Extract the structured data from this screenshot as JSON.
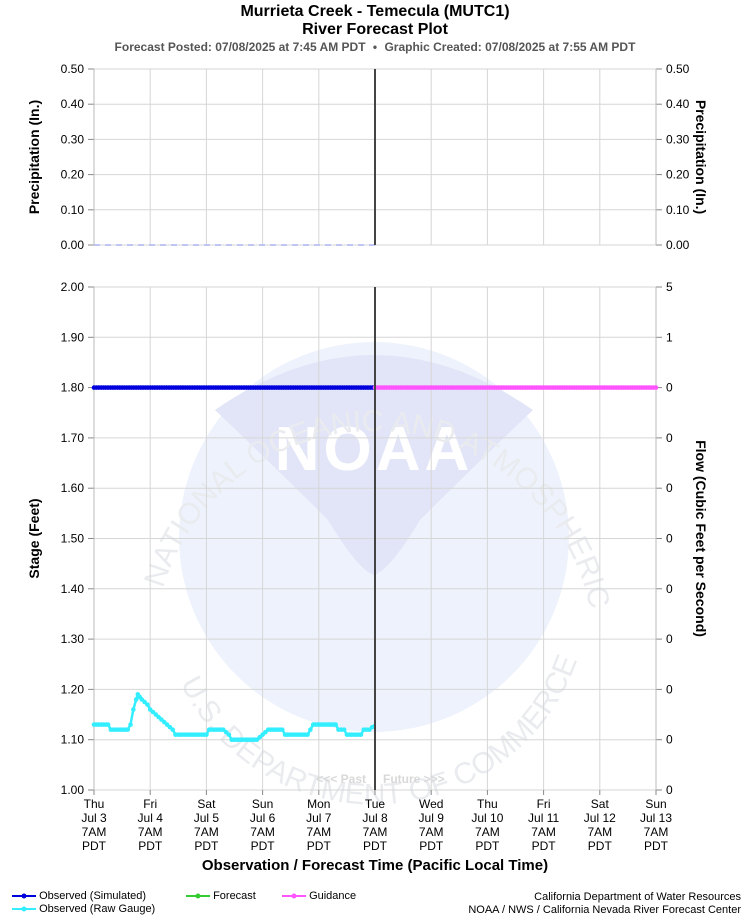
{
  "header": {
    "title": "Murrieta Creek - Temecula (MUTC1)",
    "subtitle": "River Forecast Plot",
    "posted_label": "Forecast Posted: 07/08/2025 at 7:45 AM PDT",
    "bullet": "•",
    "created_label": "Graphic Created: 07/08/2025 at 7:55 AM PDT"
  },
  "chart_data": [
    {
      "type": "line",
      "panel": "precipitation",
      "ylabel_left": "Precipitation (In.)",
      "ylabel_right": "Precipitation (In.)",
      "ylim": [
        0,
        0.5
      ],
      "yticks": [
        "0.00",
        "0.10",
        "0.20",
        "0.30",
        "0.40",
        "0.50"
      ],
      "yticks_right": [
        "0.00",
        "0.10",
        "0.20",
        "0.30",
        "0.40",
        "0.50"
      ],
      "grid": true,
      "series": [
        {
          "name": "Observed precipitation",
          "color": "#aab4f0",
          "dashed": true,
          "x_start_day": 0,
          "x_end_day": 5,
          "value": 0.0
        }
      ]
    },
    {
      "type": "line",
      "panel": "stage",
      "ylabel_left": "Stage (Feet)",
      "ylabel_right": "Flow (Cubic Feet per Second)",
      "ylim": [
        1.0,
        2.0
      ],
      "yticks": [
        "1.00",
        "1.10",
        "1.20",
        "1.30",
        "1.40",
        "1.50",
        "1.60",
        "1.70",
        "1.80",
        "1.90",
        "2.00"
      ],
      "yticks_right": [
        "0",
        "0",
        "0",
        "0",
        "0",
        "0",
        "0",
        "0",
        "0",
        "1",
        "5"
      ],
      "grid": true,
      "now_line_day": 5,
      "past_label": "<<< Past",
      "future_label": "Future >>>",
      "x_ticks": [
        {
          "dow": "Thu",
          "date": "Jul 3"
        },
        {
          "dow": "Fri",
          "date": "Jul 4"
        },
        {
          "dow": "Sat",
          "date": "Jul 5"
        },
        {
          "dow": "Sun",
          "date": "Jul 6"
        },
        {
          "dow": "Mon",
          "date": "Jul 7"
        },
        {
          "dow": "Tue",
          "date": "Jul 8"
        },
        {
          "dow": "Wed",
          "date": "Jul 9"
        },
        {
          "dow": "Thu",
          "date": "Jul 10"
        },
        {
          "dow": "Fri",
          "date": "Jul 11"
        },
        {
          "dow": "Sat",
          "date": "Jul 12"
        },
        {
          "dow": "Sun",
          "date": "Jul 13"
        }
      ],
      "x_tick_time": "7AM",
      "x_tick_tz": "PDT",
      "xlabel": "Observation / Forecast Time (Pacific Local Time)",
      "series": [
        {
          "name": "Observed (Simulated)",
          "color": "#0000dd",
          "x_start_day": 0,
          "x_end_day": 5,
          "value": 1.8
        },
        {
          "name": "Guidance",
          "color": "#ff55ff",
          "x_start_day": 5,
          "x_end_day": 10,
          "value": 1.8
        },
        {
          "name": "Observed (Raw Gauge)",
          "color": "#33eeff",
          "points": [
            [
              0,
              1.13
            ],
            [
              0.25,
              1.13
            ],
            [
              0.3,
              1.12
            ],
            [
              0.6,
              1.12
            ],
            [
              0.65,
              1.13
            ],
            [
              0.7,
              1.16
            ],
            [
              0.75,
              1.18
            ],
            [
              0.78,
              1.19
            ],
            [
              0.85,
              1.18
            ],
            [
              0.95,
              1.17
            ],
            [
              1.0,
              1.16
            ],
            [
              1.1,
              1.15
            ],
            [
              1.2,
              1.14
            ],
            [
              1.3,
              1.13
            ],
            [
              1.4,
              1.12
            ],
            [
              1.45,
              1.11
            ],
            [
              2.0,
              1.11
            ],
            [
              2.05,
              1.12
            ],
            [
              2.3,
              1.12
            ],
            [
              2.4,
              1.11
            ],
            [
              2.45,
              1.1
            ],
            [
              2.9,
              1.1
            ],
            [
              3.0,
              1.11
            ],
            [
              3.1,
              1.12
            ],
            [
              3.35,
              1.12
            ],
            [
              3.4,
              1.11
            ],
            [
              3.8,
              1.11
            ],
            [
              3.85,
              1.12
            ],
            [
              3.9,
              1.13
            ],
            [
              4.3,
              1.13
            ],
            [
              4.35,
              1.12
            ],
            [
              4.45,
              1.12
            ],
            [
              4.5,
              1.11
            ],
            [
              4.75,
              1.11
            ],
            [
              4.8,
              1.12
            ],
            [
              4.9,
              1.12
            ],
            [
              5.0,
              1.13
            ]
          ]
        }
      ]
    }
  ],
  "legend": {
    "items": [
      {
        "label": "Observed (Simulated)",
        "color": "#0000dd"
      },
      {
        "label": "Observed (Raw Gauge)",
        "color": "#33eeff"
      },
      {
        "label": "Forecast",
        "color": "#33cc33"
      },
      {
        "label": "Guidance",
        "color": "#ff55ff"
      }
    ]
  },
  "credits": {
    "line1": "California Department of Water Resources",
    "line2": "NOAA / NWS / California Nevada River Forecast Center"
  },
  "watermark": {
    "name": "noaa-logo",
    "letters": "NOAA",
    "ring_text_top": "NATIONAL OCEANIC AND ATMOSPHERIC ADMINISTRATION",
    "ring_text_bottom": "U.S. DEPARTMENT OF COMMERCE"
  }
}
